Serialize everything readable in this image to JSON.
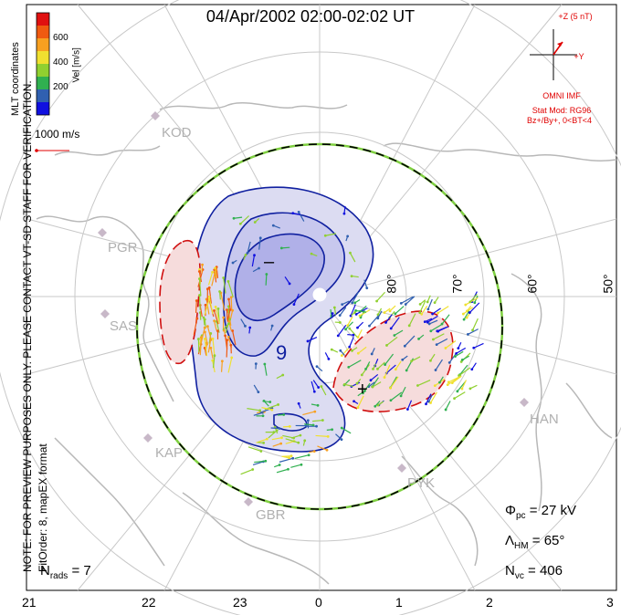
{
  "title": "04/Apr/2002 02:00-02:02 UT",
  "side_note_line1": "NOTE: FOR PREVIEW PURPOSES ONLY. PLEASE CONTACT VT-SD STAFF FOR VERIFICATION.",
  "side_note_line2": "FitOrder: 8, mapEX format",
  "coordinates_label": "MLT coordinates",
  "colorbar": {
    "title": "Vel [m/s]",
    "ticks": [
      "600",
      "400",
      "200"
    ],
    "colors": [
      "#e01010",
      "#f05a10",
      "#f8a020",
      "#f0e030",
      "#90d030",
      "#30b050",
      "#3060b0",
      "#1010e0"
    ]
  },
  "vector_scale": "1000 m/s",
  "imf": {
    "z_label": "+Z (5 nT)",
    "y_label": "+Y",
    "source": "OMNI IMF",
    "model": "Stat Mod: RG96",
    "condition": "Bz+/By+, 0<BT<4"
  },
  "stations": [
    "KOD",
    "PGR",
    "SAS",
    "KAP",
    "GBR",
    "PYK",
    "HAN"
  ],
  "latitude_labels": [
    "50°",
    "60°",
    "70°",
    "80°"
  ],
  "mlt_labels": [
    "21",
    "22",
    "23",
    "0",
    "1",
    "2",
    "3"
  ],
  "contour_signs": {
    "minus": "–",
    "plus": "+",
    "center_value": "9"
  },
  "stats": {
    "nrads_label": "N",
    "nrads_sub": "rads",
    "nrads_value": "= 7",
    "phi_label": "Φ",
    "phi_sub": "pc",
    "phi_value": "= 27 kV",
    "lambda_label": "Λ",
    "lambda_sub": "HM",
    "lambda_value": "= 65°",
    "nvc_label": "N",
    "nvc_sub": "vc",
    "nvc_value": "= 406"
  }
}
